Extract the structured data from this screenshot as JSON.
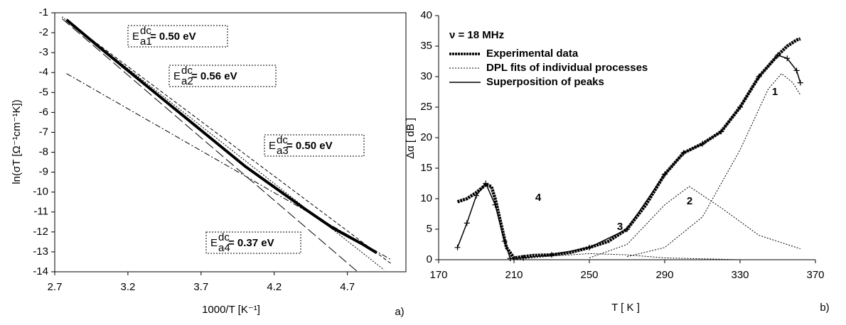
{
  "chart_data": [
    {
      "type": "line",
      "x_label": "1000/T [K⁻¹]",
      "y_label": "ln(σT [Ω⁻¹cm⁻¹K])",
      "panel_label": "a)",
      "xlim": [
        2.7,
        5.1
      ],
      "xticks": [
        2.7,
        3.2,
        3.7,
        4.2,
        4.7
      ],
      "ylim": [
        -14,
        -1
      ],
      "yticks": [
        -1,
        -2,
        -3,
        -4,
        -5,
        -6,
        -7,
        -8,
        -9,
        -10,
        -11,
        -12,
        -13,
        -14
      ],
      "box": true,
      "series": [
        {
          "color": "#000000",
          "style": "thick",
          "x": [
            2.78,
            3.0,
            3.2,
            3.4,
            3.6,
            3.8,
            4.0,
            4.2,
            4.4,
            4.6,
            4.8,
            4.9
          ],
          "values": [
            -1.35,
            -2.7,
            -3.9,
            -5.1,
            -6.3,
            -7.5,
            -8.7,
            -9.75,
            -10.8,
            -11.8,
            -12.6,
            -13.05
          ]
        },
        {
          "color": "#000000",
          "style": "longdash",
          "x": [
            2.75,
            4.77
          ],
          "values": [
            -1.3,
            -14
          ]
        },
        {
          "color": "#000000",
          "style": "dot",
          "x": [
            2.75,
            4.95
          ],
          "values": [
            -1.2,
            -13.9
          ]
        },
        {
          "color": "#000000",
          "style": "shortdash",
          "x": [
            2.8,
            5.0
          ],
          "values": [
            -1.5,
            -13.6
          ]
        },
        {
          "color": "#000000",
          "style": "dashdot",
          "x": [
            2.78,
            5.0
          ],
          "values": [
            -4.05,
            -13.4
          ]
        }
      ],
      "annotations": [
        {
          "base": "E",
          "sup": "dc",
          "sub": "a1",
          "text": "= 0.50 eV"
        },
        {
          "base": "E",
          "sup": "dc",
          "sub": "a2",
          "text": "= 0.56 eV"
        },
        {
          "base": "E",
          "sup": "dc",
          "sub": "a3",
          "text": "= 0.50 eV"
        },
        {
          "base": "E",
          "sup": "dc",
          "sub": "a4",
          "text": "= 0.37 eV"
        }
      ]
    },
    {
      "type": "line",
      "title": "ν = 18 MHz",
      "x_label": "T [ K ]",
      "y_label": "Δα [ dB ]",
      "panel_label": "b)",
      "xlim": [
        170,
        370
      ],
      "xticks": [
        170,
        210,
        250,
        290,
        330,
        370
      ],
      "ylim": [
        0,
        40
      ],
      "yticks": [
        0,
        5,
        10,
        15,
        20,
        25,
        30,
        35,
        40
      ],
      "box": false,
      "series": [
        {
          "name": "Experimental data",
          "color": "#000000",
          "style": "thickdot",
          "x": [
            180,
            185,
            190,
            195,
            198,
            200,
            203,
            206,
            210,
            215,
            220,
            230,
            240,
            250,
            260,
            270,
            280,
            290,
            300,
            310,
            320,
            330,
            340,
            350,
            355,
            360,
            362
          ],
          "values": [
            9.5,
            10,
            11,
            12.3,
            12,
            10,
            6,
            2,
            0.3,
            0.5,
            0.7,
            0.8,
            1.2,
            2,
            3,
            5,
            9,
            14,
            17.5,
            19,
            21,
            25,
            30,
            33.5,
            35,
            36,
            36.2
          ]
        },
        {
          "name": "DPL fits of individual processes",
          "color": "#000000",
          "style": "dot",
          "x": [
            270,
            290,
            310,
            330,
            345,
            352,
            358,
            362,
            362,
            250,
            270,
            290,
            303,
            320,
            340,
            362,
            362,
            210,
            230,
            250,
            270,
            290,
            330
          ],
          "values": [
            0.5,
            2,
            7,
            18,
            28,
            30.5,
            29,
            27,
            null,
            0.3,
            2.5,
            9,
            12,
            8.5,
            4,
            1.8,
            null,
            0,
            0.6,
            1,
            0.8,
            0.3,
            0
          ]
        },
        {
          "name": "Superposition of peaks",
          "color": "#000000",
          "style": "plus",
          "x": [
            180,
            185,
            190,
            195,
            200,
            205,
            208,
            215,
            230,
            250,
            270,
            290,
            300,
            310,
            320,
            330,
            340,
            350,
            355,
            360,
            362
          ],
          "values": [
            2,
            6,
            10.5,
            12.5,
            9,
            3,
            0.2,
            0.3,
            0.8,
            2,
            5,
            14,
            17.5,
            19,
            21,
            25,
            30,
            33.5,
            33,
            31,
            29
          ]
        }
      ],
      "peak_labels": [
        "1",
        "2",
        "3",
        "4"
      ]
    }
  ]
}
